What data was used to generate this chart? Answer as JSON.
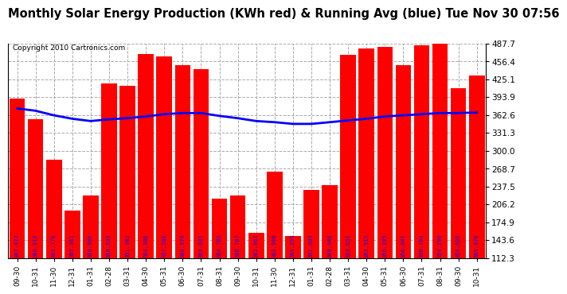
{
  "title": "Monthly Solar Energy Production (KWh red) & Running Avg (blue) Tue Nov 30 07:56",
  "copyright": "Copyright 2010 Cartronics.com",
  "categories": [
    "09-30",
    "10-31",
    "11-30",
    "12-31",
    "01-31",
    "02-28",
    "03-31",
    "04-30",
    "05-31",
    "06-30",
    "07-31",
    "08-31",
    "09-30",
    "10-31",
    "11-30",
    "12-31",
    "01-31",
    "02-28",
    "03-31",
    "04-30",
    "05-31",
    "06-30",
    "07-31",
    "08-31",
    "09-30",
    "10-31"
  ],
  "bar_values": [
    391.0,
    355.0,
    285.0,
    196.0,
    222.0,
    418.0,
    413.0,
    469.0,
    465.0,
    450.0,
    443.0,
    216.0,
    222.0,
    157.0,
    263.0,
    151.0,
    232.0,
    240.0,
    468.0,
    479.0,
    482.0,
    450.0,
    484.0,
    487.0,
    409.0,
    432.0
  ],
  "running_avg": [
    374.0,
    370.0,
    362.0,
    356.0,
    352.0,
    355.0,
    357.0,
    360.0,
    364.0,
    366.0,
    366.0,
    361.0,
    357.0,
    352.0,
    350.0,
    347.0,
    347.0,
    350.0,
    353.0,
    356.0,
    360.0,
    362.0,
    364.0,
    366.0,
    366.0,
    367.0
  ],
  "bar_labels": [
    "367.474",
    "366.918",
    "363.778",
    "355.361",
    "350.966",
    "350.533",
    "351.382",
    "354.306",
    "357.586",
    "360.578",
    "363.031",
    "364.780",
    "366.767",
    "362.961",
    "363.960",
    "365.253",
    "351.833",
    "348.946",
    "353.651",
    "353.515",
    "356.205",
    "356.041",
    "356.704",
    "354.296",
    "354.020",
    "365.070"
  ],
  "ylim": [
    112.3,
    487.7
  ],
  "yticks": [
    112.3,
    143.6,
    174.9,
    206.2,
    237.5,
    268.7,
    300.0,
    331.3,
    362.6,
    393.9,
    425.1,
    456.4,
    487.7
  ],
  "bar_color": "#ff0000",
  "line_color": "#0000ff",
  "bg_color": "#ffffff",
  "grid_color": "#aaaaaa",
  "label_color": "#0000ff",
  "title_color": "#000000",
  "title_fontsize": 10.5,
  "copyright_fontsize": 6.5
}
